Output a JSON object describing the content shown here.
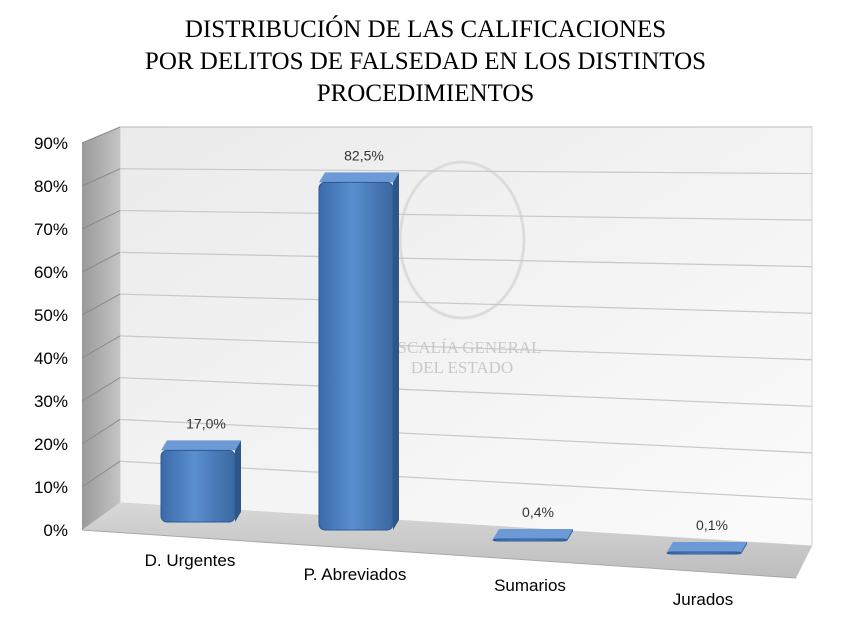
{
  "chart_data": {
    "type": "bar",
    "title_lines": [
      "DISTRIBUCIÓN DE LAS CALIFICACIONES",
      "POR DELITOS DE FALSEDAD EN LOS DISTINTOS",
      "PROCEDIMIENTOS"
    ],
    "categories": [
      "D. Urgentes",
      "P. Abreviados",
      "Sumarios",
      "Jurados"
    ],
    "values": [
      17.0,
      82.5,
      0.4,
      0.1
    ],
    "data_labels": [
      "17,0%",
      "82,5%",
      "0,4%",
      "0,1%"
    ],
    "y_ticks": [
      "0%",
      "10%",
      "20%",
      "30%",
      "40%",
      "50%",
      "60%",
      "70%",
      "80%",
      "90%"
    ],
    "ylim": [
      0,
      90
    ],
    "grid": true,
    "bar_color": "#4a7ebb",
    "watermark": [
      "FISCALÍA GENERAL",
      "DEL ESTADO"
    ]
  }
}
